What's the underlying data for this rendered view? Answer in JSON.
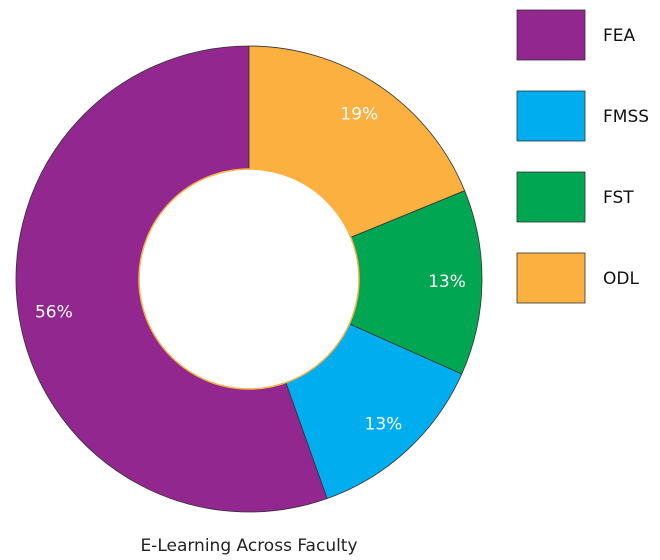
{
  "chart_data": {
    "type": "donut",
    "title": "E-Learning Across Faculty",
    "categories": [
      "FEA",
      "FMSS",
      "FST",
      "ODL"
    ],
    "values": [
      56,
      13,
      13,
      19
    ],
    "value_labels": [
      "56%",
      "13%",
      "13%",
      "19%"
    ],
    "colors": [
      "#92278f",
      "#00aeef",
      "#00a651",
      "#fbb040"
    ],
    "legend": "right"
  }
}
